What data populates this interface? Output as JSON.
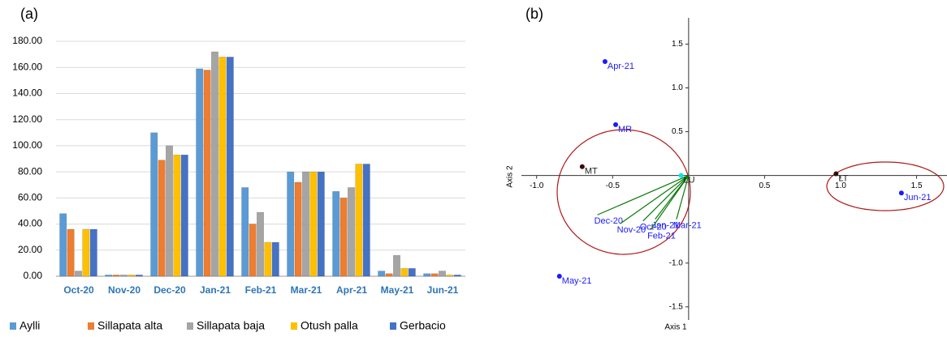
{
  "chart_data": [
    {
      "type": "bar",
      "panel": "(a)",
      "categories": [
        "Oct-20",
        "Nov-20",
        "Dec-20",
        "Jan-21",
        "Feb-21",
        "Mar-21",
        "Apr-21",
        "May-21",
        "Jun-21"
      ],
      "series": [
        {
          "name": "Aylli",
          "color": "#5b9bd5",
          "values": [
            48,
            1,
            110,
            159,
            68,
            80,
            65,
            4,
            2
          ]
        },
        {
          "name": "Sillapata alta",
          "color": "#ed7d31",
          "values": [
            36,
            1,
            89,
            158,
            40,
            72,
            60,
            2,
            2
          ]
        },
        {
          "name": "Sillapata baja",
          "color": "#a5a5a5",
          "values": [
            4,
            1,
            100,
            172,
            49,
            80,
            68,
            16,
            4
          ]
        },
        {
          "name": "Otush palla",
          "color": "#ffc000",
          "values": [
            36,
            1,
            93,
            168,
            26,
            80,
            86,
            6,
            1
          ]
        },
        {
          "name": "Gerbacio",
          "color": "#4472c4",
          "values": [
            36,
            1,
            93,
            168,
            26,
            80,
            86,
            6,
            1
          ]
        }
      ],
      "ylim": [
        0,
        185
      ],
      "yticks": [
        {
          "value": 0,
          "label": "0.00"
        },
        {
          "value": 20,
          "label": "20.00"
        },
        {
          "value": 40,
          "label": "40.00"
        },
        {
          "value": 60,
          "label": "60.00"
        },
        {
          "value": 80,
          "label": "80.00"
        },
        {
          "value": 100,
          "label": "100.00"
        },
        {
          "value": 120,
          "label": "120.00"
        },
        {
          "value": 140,
          "label": "140.00"
        },
        {
          "value": 160,
          "label": "160.00"
        },
        {
          "value": 180,
          "label": "180.00"
        }
      ],
      "grid": true
    },
    {
      "type": "scatter",
      "panel": "(b)",
      "xlabel": "Axis 1",
      "ylabel": "Axis 2",
      "xlim": [
        -1.1,
        1.7
      ],
      "ylim": [
        -1.65,
        1.8
      ],
      "xticks": [
        {
          "value": -1,
          "label": "-1.0"
        },
        -0.5,
        0.5,
        {
          "value": 1,
          "label": "1.0"
        },
        1.5
      ],
      "yticks": [
        1.5,
        {
          "value": 1,
          "label": "1.0"
        },
        0.5,
        {
          "value": -1,
          "label": "-1.0"
        },
        -1.5
      ],
      "points": [
        {
          "label": "Apr-21",
          "x": -0.55,
          "y": 1.3,
          "color": "#1a1aff"
        },
        {
          "label": "MR",
          "x": -0.48,
          "y": 0.58,
          "color": "#1a1aff"
        },
        {
          "label": "MT",
          "x": -0.7,
          "y": 0.1,
          "color": "#3a0a0a"
        },
        {
          "label": "LU",
          "x": -0.05,
          "y": 0.0,
          "color": "#00e5ee"
        },
        {
          "label": "LT",
          "x": 0.97,
          "y": 0.02,
          "color": "#3a0a0a"
        },
        {
          "label": "Jun-21",
          "x": 1.4,
          "y": -0.2,
          "color": "#1a1aff"
        },
        {
          "label": "May-21",
          "x": -0.85,
          "y": -1.15,
          "color": "#1a1aff"
        }
      ],
      "vectors": [
        {
          "label": "Dec-20",
          "x": -0.6,
          "y": -0.45
        },
        {
          "label": "Nov-20",
          "x": -0.45,
          "y": -0.55
        },
        {
          "label": "Oct-20",
          "x": -0.3,
          "y": -0.52
        },
        {
          "label": "Jan-21",
          "x": -0.22,
          "y": -0.5
        },
        {
          "label": "Feb-21",
          "x": -0.25,
          "y": -0.62
        },
        {
          "label": "Mar-21",
          "x": -0.08,
          "y": -0.5
        }
      ],
      "vector_color": "#0a7a0a",
      "vector_label_color": "#1a1aff"
    }
  ]
}
